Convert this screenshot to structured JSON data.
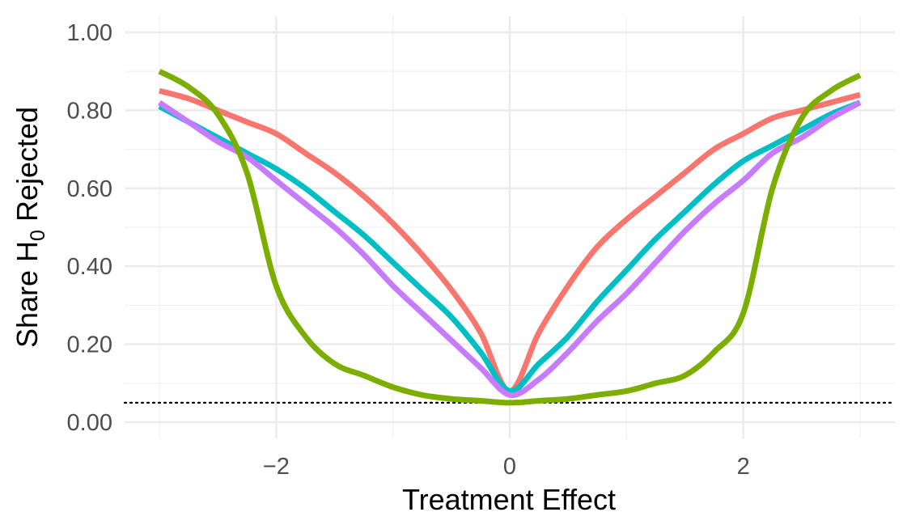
{
  "chart_data": {
    "type": "line",
    "title": "",
    "xlabel": "Treatment Effect",
    "ylabel": {
      "prefix": "Share  H",
      "subscript": "0",
      "suffix": "  Rejected"
    },
    "xlim": [
      -3,
      3
    ],
    "ylim": [
      0,
      1
    ],
    "x_ticks": [
      -2,
      0,
      2
    ],
    "x_tick_labels": [
      "−2",
      "0",
      "2"
    ],
    "y_ticks": [
      0,
      0.2,
      0.4,
      0.6,
      0.8,
      1.0
    ],
    "y_tick_labels": [
      "0.00",
      "0.20",
      "0.40",
      "0.60",
      "0.80",
      "1.00"
    ],
    "grid": true,
    "legend": "none",
    "reference_line": {
      "y": 0.05,
      "style": "dotted",
      "color": "#000000"
    },
    "x": [
      -3,
      -2.75,
      -2.5,
      -2.25,
      -2,
      -1.75,
      -1.5,
      -1.25,
      -1,
      -0.75,
      -0.5,
      -0.25,
      0,
      0.25,
      0.5,
      0.75,
      1,
      1.25,
      1.5,
      1.75,
      2,
      2.25,
      2.5,
      2.75,
      3
    ],
    "series": [
      {
        "color": "#f8766d",
        "values": [
          0.85,
          0.83,
          0.8,
          0.77,
          0.74,
          0.69,
          0.64,
          0.58,
          0.51,
          0.43,
          0.34,
          0.23,
          0.08,
          0.23,
          0.35,
          0.45,
          0.52,
          0.58,
          0.64,
          0.7,
          0.74,
          0.78,
          0.8,
          0.82,
          0.84
        ]
      },
      {
        "color": "#00bfc4",
        "values": [
          0.81,
          0.77,
          0.73,
          0.69,
          0.65,
          0.6,
          0.54,
          0.48,
          0.41,
          0.34,
          0.27,
          0.18,
          0.08,
          0.15,
          0.22,
          0.31,
          0.39,
          0.47,
          0.54,
          0.61,
          0.67,
          0.71,
          0.75,
          0.79,
          0.82
        ]
      },
      {
        "color": "#c77cff",
        "values": [
          0.82,
          0.77,
          0.72,
          0.68,
          0.62,
          0.56,
          0.5,
          0.43,
          0.35,
          0.28,
          0.21,
          0.14,
          0.07,
          0.11,
          0.18,
          0.26,
          0.33,
          0.41,
          0.49,
          0.56,
          0.62,
          0.69,
          0.73,
          0.78,
          0.82
        ]
      },
      {
        "color": "#7cae00",
        "values": [
          0.9,
          0.86,
          0.79,
          0.64,
          0.35,
          0.22,
          0.15,
          0.12,
          0.09,
          0.07,
          0.06,
          0.055,
          0.05,
          0.055,
          0.06,
          0.07,
          0.08,
          0.1,
          0.12,
          0.18,
          0.28,
          0.6,
          0.78,
          0.85,
          0.89
        ]
      }
    ]
  }
}
